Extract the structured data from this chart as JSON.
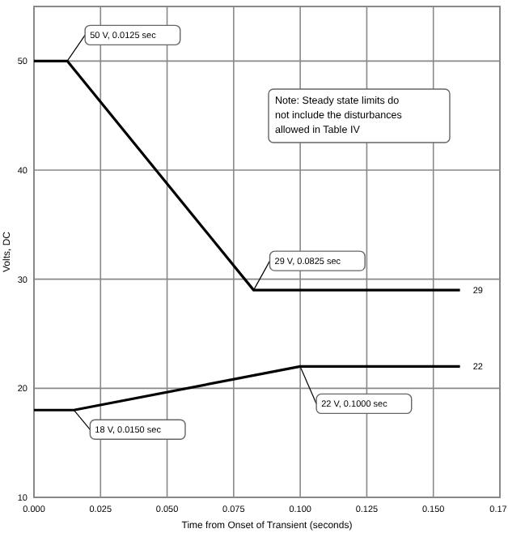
{
  "chart_data": {
    "type": "line",
    "xlabel": "Time from Onset of Transient (seconds)",
    "ylabel": "Volts, DC",
    "xlim": [
      0,
      0.175
    ],
    "xticks": [
      {
        "value": 0,
        "label": "0.000"
      },
      {
        "value": 0.025,
        "label": "0.025"
      },
      {
        "value": 0.05,
        "label": "0.050"
      },
      {
        "value": 0.075,
        "label": "0.075"
      },
      {
        "value": 0.1,
        "label": "0.100"
      },
      {
        "value": 0.125,
        "label": "0.125"
      },
      {
        "value": 0.15,
        "label": "0.150"
      },
      {
        "value": 0.175,
        "label": "0.17"
      }
    ],
    "ylim": [
      10,
      55
    ],
    "yticks": [
      10,
      20,
      30,
      40,
      50
    ],
    "grid": true,
    "marker": "none",
    "line_style": "solid",
    "series": [
      {
        "color": "#000000",
        "x": [
          0,
          0.0125,
          0.0825,
          0.16
        ],
        "values": [
          50,
          50,
          29,
          29
        ]
      },
      {
        "color": "#000000",
        "x": [
          0,
          0.015,
          0.1,
          0.16
        ],
        "values": [
          18,
          18,
          22,
          22
        ]
      }
    ],
    "annotations": [
      {
        "text": "50 V, 0.0125 sec",
        "x": 0.0125,
        "y": 50
      },
      {
        "text": "29 V, 0.0825 sec",
        "x": 0.0825,
        "y": 29
      },
      {
        "text": "18 V, 0.0150 sec",
        "x": 0.015,
        "y": 18
      },
      {
        "text": "22 V, 0.1000 sec",
        "x": 0.1,
        "y": 22
      },
      "29",
      "22",
      "Note: Steady state limits do not include the disturbances allowed in Table IV"
    ]
  }
}
